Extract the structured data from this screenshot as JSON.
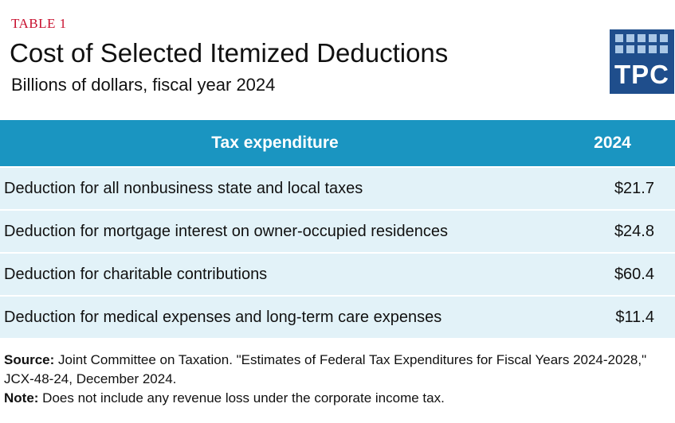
{
  "label": "TABLE 1",
  "title": "Cost of Selected Itemized Deductions",
  "subtitle": "Billions of dollars, fiscal year 2024",
  "logo": {
    "text": "TPC",
    "color": "#1f4e8c"
  },
  "colors": {
    "header_bg": "#1a95c1",
    "row_bg": "#e2f2f8",
    "label_red": "#c8102e"
  },
  "table": {
    "headers": {
      "expenditure": "Tax expenditure",
      "year": "2024"
    },
    "rows": [
      {
        "expenditure": "Deduction for all nonbusiness state and local taxes",
        "value": "$21.7"
      },
      {
        "expenditure": "Deduction for mortgage interest on owner-occupied residences",
        "value": "$24.8"
      },
      {
        "expenditure": "Deduction for charitable contributions",
        "value": "$60.4"
      },
      {
        "expenditure": "Deduction for medical expenses and long-term care expenses",
        "value": "$11.4"
      }
    ]
  },
  "footer": {
    "source_label": "Source:",
    "source_text": " Joint Committee on Taxation. \"Estimates of Federal Tax Expenditures for Fiscal Years 2024-2028,\" JCX-48-24, December 2024.",
    "note_label": "Note:",
    "note_text": " Does not include any revenue loss under the corporate income tax."
  }
}
